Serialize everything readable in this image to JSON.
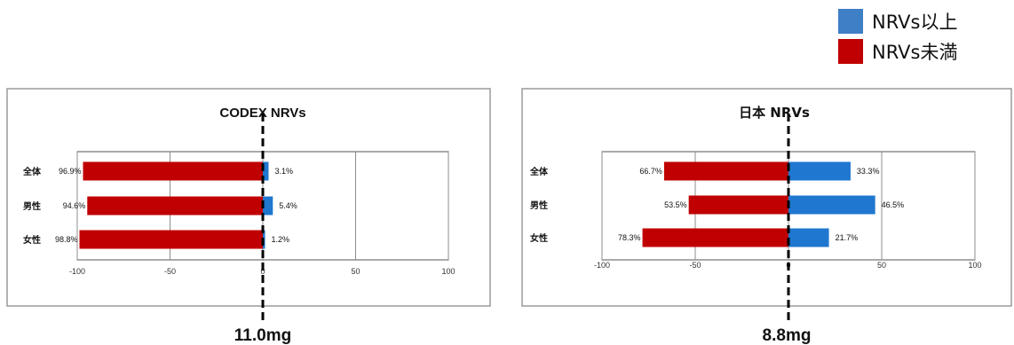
{
  "legend": {
    "items": [
      {
        "label": "NRVs以上",
        "color": "#3f7fc6"
      },
      {
        "label": "NRVs未満",
        "color": "#c00000"
      }
    ]
  },
  "chart_data": [
    {
      "type": "bar",
      "orientation": "horizontal",
      "stacked": "diverging",
      "title": "CODEX NRVs",
      "categories": [
        "全体",
        "男性",
        "女性"
      ],
      "series": [
        {
          "name": "NRVs未満",
          "color": "#c00000",
          "values": [
            96.9,
            94.6,
            98.8
          ],
          "labels": [
            "96.9%",
            "94.6%",
            "98.8%"
          ]
        },
        {
          "name": "NRVs以上",
          "color": "#1f77d0",
          "values": [
            3.1,
            5.4,
            1.2
          ],
          "labels": [
            "3.1%",
            "5.4%",
            "1.2%"
          ]
        }
      ],
      "xlim": [
        -100,
        100
      ],
      "xticks": [
        "-100",
        "-50",
        "0",
        "50",
        "100"
      ],
      "grid": true,
      "reference_label": "11.0mg"
    },
    {
      "type": "bar",
      "orientation": "horizontal",
      "stacked": "diverging",
      "title": "日本 NRVs",
      "categories": [
        "全体",
        "男性",
        "女性"
      ],
      "series": [
        {
          "name": "NRVs未満",
          "color": "#c00000",
          "values": [
            66.7,
            53.5,
            78.3
          ],
          "labels": [
            "66.7%",
            "53.5%",
            "78.3%"
          ]
        },
        {
          "name": "NRVs以上",
          "color": "#1f77d0",
          "values": [
            33.3,
            46.5,
            21.7
          ],
          "labels": [
            "33.3%",
            "46.5%",
            "21.7%"
          ]
        }
      ],
      "xlim": [
        -100,
        100
      ],
      "xticks": [
        "-100",
        "-50",
        "0",
        "50",
        "100"
      ],
      "grid": true,
      "reference_label": "8.8mg"
    }
  ]
}
